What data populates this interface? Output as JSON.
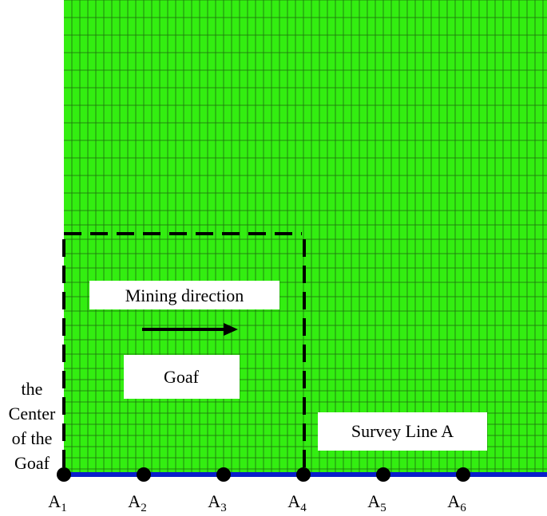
{
  "labels": {
    "mining_direction": "Mining direction",
    "goaf": "Goaf",
    "survey_line": "Survey Line A",
    "center": [
      "the",
      "Center",
      "of the",
      "Goaf"
    ]
  },
  "points": [
    {
      "letter": "A",
      "subscript": "1"
    },
    {
      "letter": "A",
      "subscript": "2"
    },
    {
      "letter": "A",
      "subscript": "3"
    },
    {
      "letter": "A",
      "subscript": "4"
    },
    {
      "letter": "A",
      "subscript": "5"
    },
    {
      "letter": "A",
      "subscript": "6"
    }
  ]
}
